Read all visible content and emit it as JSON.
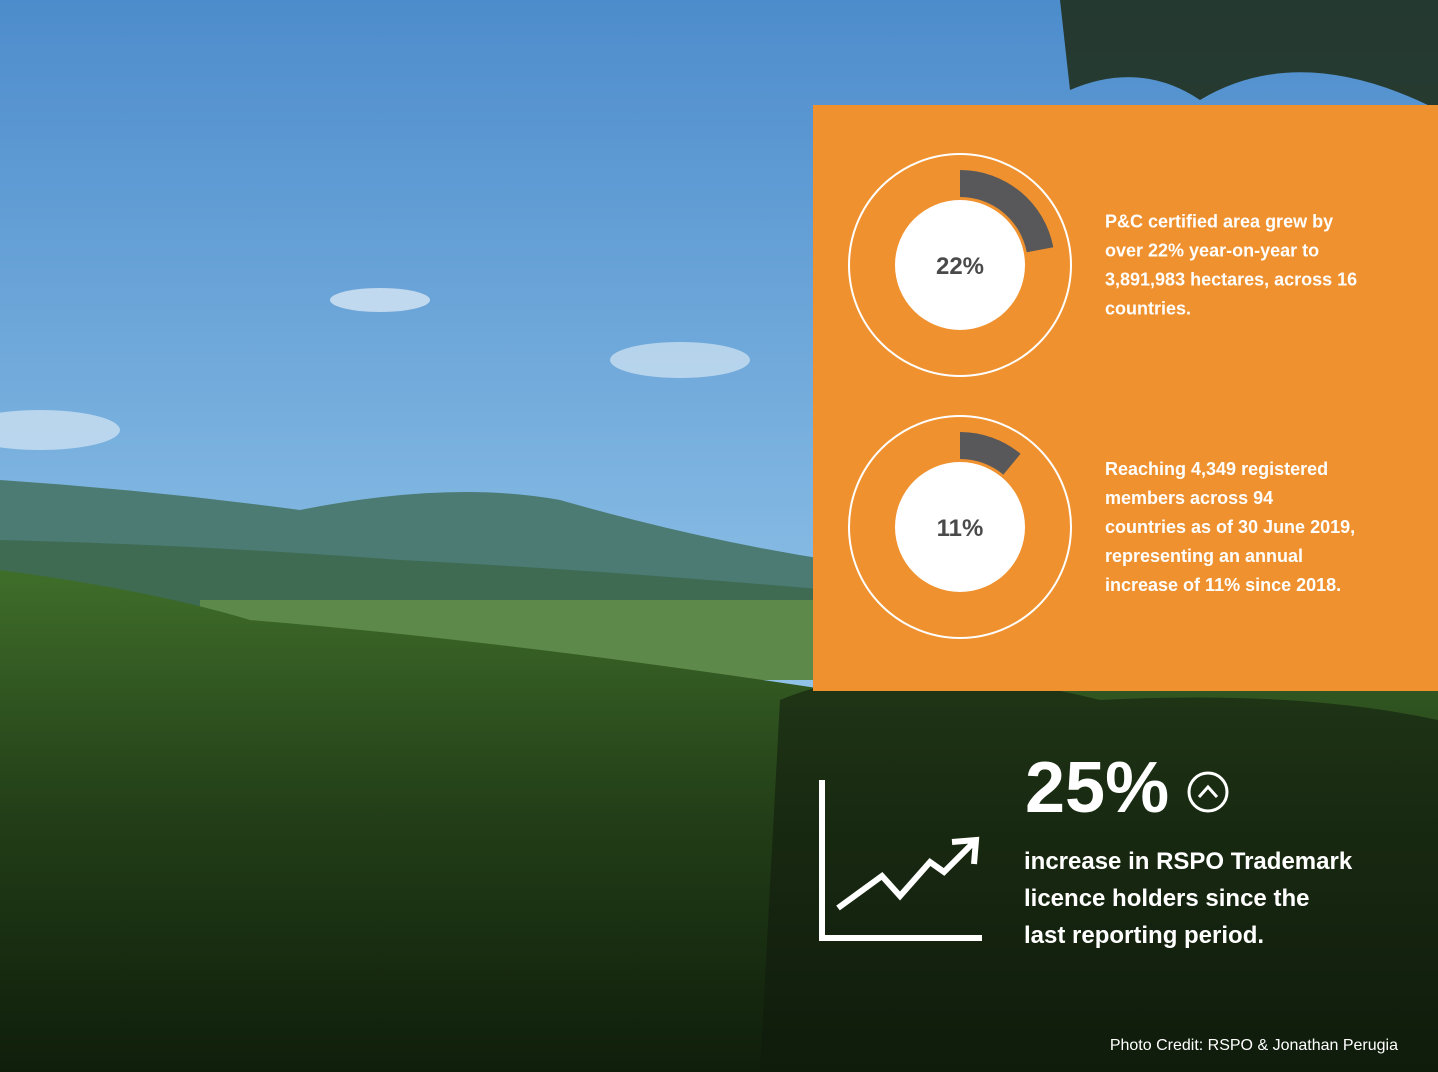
{
  "stats": [
    {
      "percent": {
        "value": 22,
        "label": "22%"
      },
      "lines": [
        "P&C certified area grew by",
        "over 22% year-on-year to",
        "3,891,983 hectares, across 16",
        "countries."
      ]
    },
    {
      "percent": {
        "value": 11,
        "label": "11%"
      },
      "lines": [
        "Reaching 4,349 registered",
        "members across 94",
        "countries as of 30 June 2019,",
        "representing an annual",
        "increase of 11% since 2018."
      ]
    }
  ],
  "highlight": {
    "value": "25%",
    "lines": [
      "increase in RSPO Trademark",
      "licence holders since the",
      "last reporting period."
    ]
  },
  "credit": "Photo Credit: RSPO & Jonathan Perugia"
}
